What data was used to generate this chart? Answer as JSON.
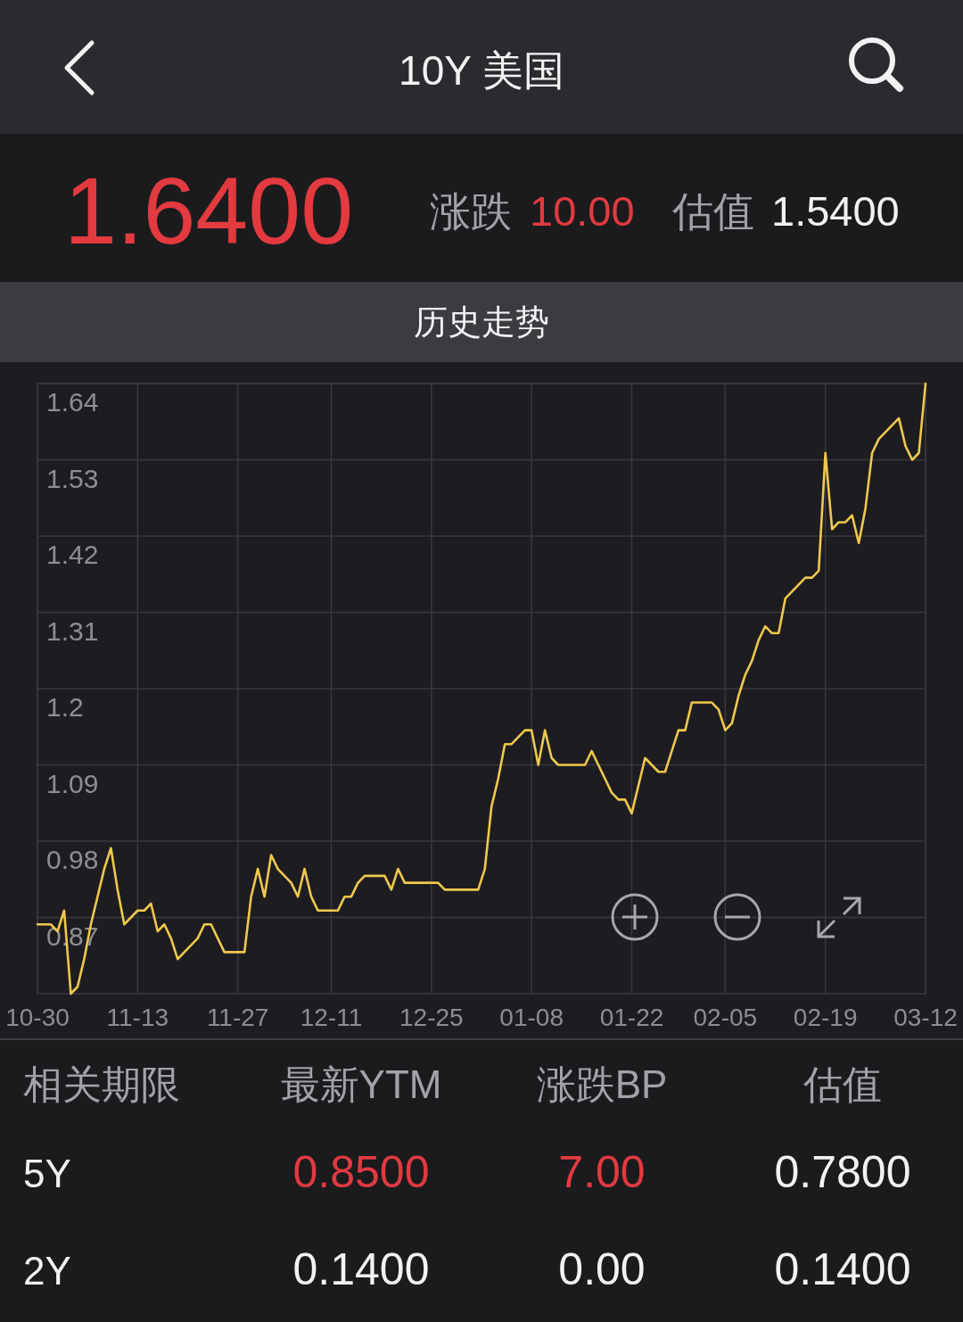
{
  "chart_data": {
    "type": "line",
    "title": "10Y 美国",
    "subtitle": "历史走势",
    "annotations": [
      "1.6400",
      "涨跌",
      "10.00",
      "估值",
      "1.5400",
      "相关期限",
      "最新YTM",
      "涨跌BP",
      "估值",
      "5Y",
      "0.8500",
      "7.00",
      "0.7800",
      "2Y",
      "0.1400",
      "0.00",
      "0.1400"
    ],
    "categories": [
      "10-30",
      null,
      null,
      null,
      null,
      null,
      null,
      null,
      null,
      null,
      null,
      null,
      null,
      null,
      null,
      "11-13",
      null,
      null,
      null,
      null,
      null,
      null,
      null,
      null,
      null,
      null,
      null,
      null,
      null,
      null,
      "11-27",
      null,
      null,
      null,
      null,
      null,
      null,
      null,
      null,
      null,
      null,
      null,
      null,
      null,
      "12-11",
      null,
      null,
      null,
      null,
      null,
      null,
      null,
      null,
      null,
      null,
      null,
      null,
      null,
      null,
      "12-25",
      null,
      null,
      null,
      null,
      null,
      null,
      null,
      null,
      null,
      null,
      null,
      null,
      null,
      null,
      "01-08",
      null,
      null,
      null,
      null,
      null,
      null,
      null,
      null,
      null,
      null,
      null,
      null,
      null,
      null,
      "01-22",
      null,
      null,
      null,
      null,
      null,
      null,
      null,
      null,
      null,
      null,
      null,
      null,
      null,
      "02-05",
      null,
      null,
      null,
      null,
      null,
      null,
      null,
      null,
      null,
      null,
      null,
      null,
      null,
      null,
      "02-19",
      null,
      null,
      null,
      null,
      null,
      null,
      null,
      null,
      null,
      null,
      null,
      null,
      null,
      null,
      "03-12"
    ],
    "series": [
      {
        "color": "#f0c84c",
        "values": [
          0.86,
          0.86,
          0.86,
          0.85,
          0.88,
          0.76,
          0.77,
          0.81,
          0.86,
          0.9,
          0.94,
          0.97,
          0.91,
          0.86,
          0.87,
          0.88,
          0.88,
          0.89,
          0.85,
          0.86,
          0.84,
          0.81,
          0.82,
          0.83,
          0.84,
          0.86,
          0.86,
          0.84,
          0.82,
          0.82,
          0.82,
          0.82,
          0.9,
          0.94,
          0.9,
          0.96,
          0.94,
          0.93,
          0.92,
          0.9,
          0.94,
          0.9,
          0.88,
          0.88,
          0.88,
          0.88,
          0.9,
          0.9,
          0.92,
          0.93,
          0.93,
          0.93,
          0.93,
          0.91,
          0.94,
          0.92,
          0.92,
          0.92,
          0.92,
          0.92,
          0.92,
          0.91,
          0.91,
          0.91,
          0.91,
          0.91,
          0.91,
          0.94,
          1.03,
          1.07,
          1.12,
          1.12,
          1.13,
          1.14,
          1.14,
          1.09,
          1.14,
          1.1,
          1.09,
          1.09,
          1.09,
          1.09,
          1.09,
          1.11,
          1.09,
          1.07,
          1.05,
          1.04,
          1.04,
          1.02,
          1.06,
          1.1,
          1.09,
          1.08,
          1.08,
          1.11,
          1.14,
          1.14,
          1.18,
          1.18,
          1.18,
          1.18,
          1.17,
          1.14,
          1.15,
          1.19,
          1.22,
          1.24,
          1.27,
          1.29,
          1.28,
          1.28,
          1.33,
          1.34,
          1.35,
          1.36,
          1.36,
          1.37,
          1.54,
          1.43,
          1.44,
          1.44,
          1.45,
          1.41,
          1.46,
          1.54,
          1.56,
          1.57,
          1.58,
          1.59,
          1.55,
          1.53,
          1.54,
          1.64
        ]
      }
    ],
    "ylim": [
      0.76,
      1.64
    ],
    "yticks": [
      1.64,
      1.53,
      1.42,
      1.31,
      1.2,
      1.09,
      0.98,
      0.87
    ],
    "grid": true
  }
}
